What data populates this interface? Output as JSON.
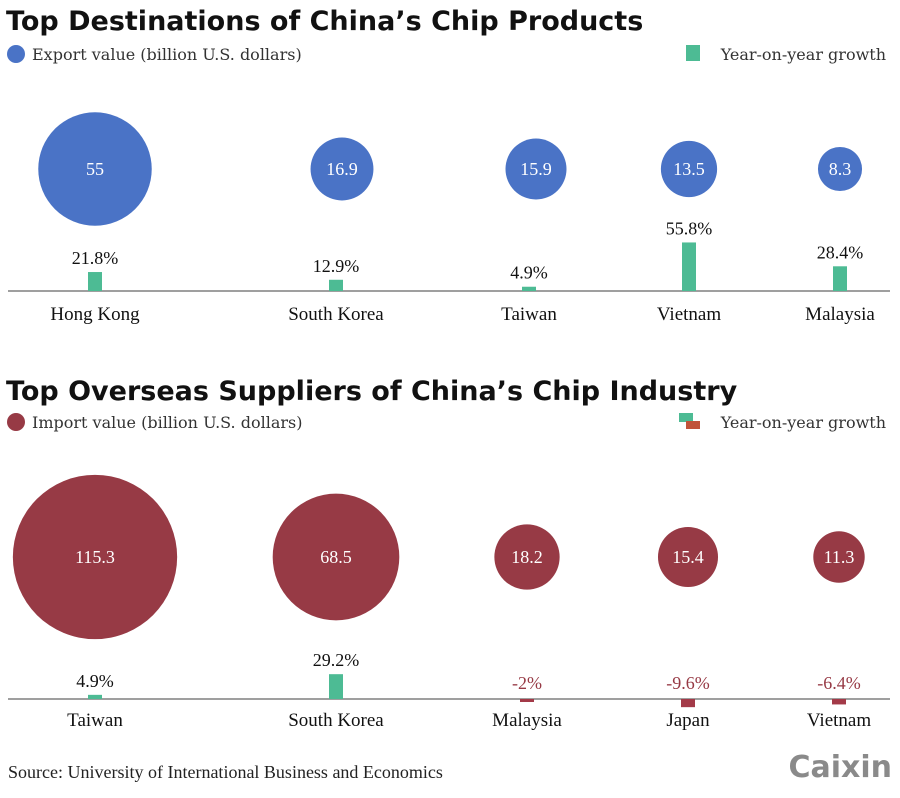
{
  "colors": {
    "export": "#4a73c6",
    "import": "#973a45",
    "growth_pos": "#4dbb94",
    "growth_neg": "#a33a48",
    "legend_neg": "#c0533a",
    "neg_text": "#973a45"
  },
  "chart_data": [
    {
      "type": "bubble+bar",
      "title": "Top Destinations of China’s Chip Products",
      "legend_value": "Export value (billion U.S. dollars)",
      "legend_growth": "Year-on-year growth",
      "categories": [
        "Hong Kong",
        "South Korea",
        "Taiwan",
        "Vietnam",
        "Malaysia"
      ],
      "values": [
        55,
        16.9,
        15.9,
        13.5,
        8.3
      ],
      "value_labels": [
        "55",
        "16.9",
        "15.9",
        "13.5",
        "8.3"
      ],
      "growth": [
        21.8,
        12.9,
        4.9,
        55.8,
        28.4
      ],
      "growth_labels": [
        "21.8%",
        "12.9%",
        "4.9%",
        "55.8%",
        "28.4%"
      ]
    },
    {
      "type": "bubble+bar",
      "title": "Top Overseas Suppliers of China’s Chip Industry",
      "legend_value": "Import value (billion U.S. dollars)",
      "legend_growth": "Year-on-year growth",
      "categories": [
        "Taiwan",
        "South Korea",
        "Malaysia",
        "Japan",
        "Vietnam"
      ],
      "values": [
        115.3,
        68.5,
        18.2,
        15.4,
        11.3
      ],
      "value_labels": [
        "115.3",
        "68.5",
        "18.2",
        "15.4",
        "11.3"
      ],
      "growth": [
        4.9,
        29.2,
        -2,
        -9.6,
        -6.4
      ],
      "growth_labels": [
        "4.9%",
        "29.2%",
        "-2%",
        "-9.6%",
        "-6.4%"
      ]
    }
  ],
  "source": "Source: University of International Business and Economics",
  "logo": "Caixin"
}
